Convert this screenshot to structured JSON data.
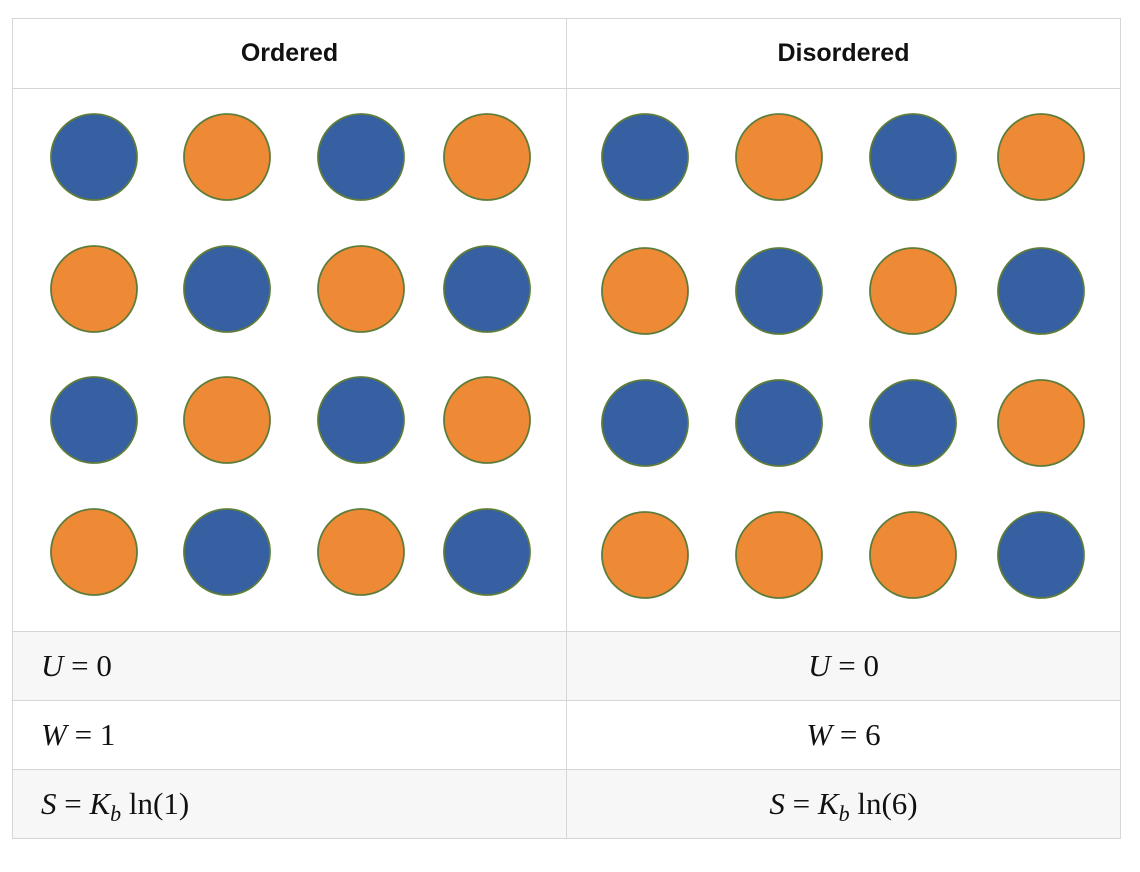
{
  "colors": {
    "blue": "#3660a2",
    "orange": "#ee8a35",
    "circle_stroke": "#5e7d3a",
    "border": "#d6d6d6",
    "shaded_row": "#f7f7f7"
  },
  "headers": {
    "ordered": "Ordered",
    "disordered": "Disordered"
  },
  "grids": {
    "ordered": [
      [
        "blue",
        "orange",
        "blue",
        "orange"
      ],
      [
        "orange",
        "blue",
        "orange",
        "blue"
      ],
      [
        "blue",
        "orange",
        "blue",
        "orange"
      ],
      [
        "orange",
        "blue",
        "orange",
        "blue"
      ]
    ],
    "disordered": [
      [
        "blue",
        "orange",
        "blue",
        "orange"
      ],
      [
        "orange",
        "blue",
        "orange",
        "blue"
      ],
      [
        "blue",
        "blue",
        "blue",
        "orange"
      ],
      [
        "orange",
        "orange",
        "orange",
        "blue"
      ]
    ]
  },
  "formulas": {
    "ordered": {
      "energy": {
        "symbol": "U",
        "op": " = ",
        "value": "0"
      },
      "microstates": {
        "symbol": "W",
        "op": " = ",
        "value": "1"
      },
      "entropy": {
        "symbol": "S",
        "op": " = ",
        "const": "K",
        "sub": "b",
        "func": " ln(1)"
      }
    },
    "disordered": {
      "energy": {
        "symbol": "U",
        "op": " = ",
        "value": "0"
      },
      "microstates": {
        "symbol": "W",
        "op": " = ",
        "value": "6"
      },
      "entropy": {
        "symbol": "S",
        "op": " = ",
        "const": "K",
        "sub": "b",
        "func": " ln(6)"
      }
    }
  }
}
